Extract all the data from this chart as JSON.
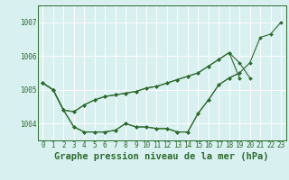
{
  "background_color": "#d8f0f0",
  "grid_color": "#ffffff",
  "line_color": "#2d6a2d",
  "title": "Graphe pression niveau de la mer (hPa)",
  "x_labels": [
    "0",
    "1",
    "2",
    "3",
    "4",
    "5",
    "6",
    "7",
    "8",
    "9",
    "10",
    "11",
    "12",
    "13",
    "14",
    "15",
    "16",
    "17",
    "18",
    "19",
    "20",
    "21",
    "22",
    "23"
  ],
  "ylim": [
    1003.5,
    1007.5
  ],
  "yticks": [
    1004,
    1005,
    1006,
    1007
  ],
  "series1_x": [
    0,
    1,
    2,
    3,
    4,
    5,
    6,
    7,
    8,
    9,
    10,
    11,
    12,
    13,
    14,
    15,
    16,
    17,
    18,
    19,
    20,
    21,
    22,
    23
  ],
  "series1_y": [
    1005.2,
    1005.0,
    1004.4,
    1003.9,
    1003.75,
    1003.75,
    1003.75,
    1003.8,
    1004.0,
    1003.9,
    1003.9,
    1003.85,
    1003.85,
    1003.75,
    1003.75,
    1004.3,
    1004.7,
    1005.15,
    1005.35,
    1005.5,
    1005.8,
    1006.55,
    1006.65,
    1007.0
  ],
  "series2_x": [
    0,
    1,
    2,
    3,
    4,
    5,
    6,
    7,
    8,
    9,
    10,
    11,
    12,
    13,
    14,
    15,
    16,
    17,
    18,
    19,
    20
  ],
  "series2_y": [
    1005.2,
    1005.0,
    1004.4,
    1004.35,
    1004.55,
    1004.7,
    1004.8,
    1004.85,
    1004.9,
    1004.95,
    1005.05,
    1005.1,
    1005.2,
    1005.3,
    1005.4,
    1005.5,
    1005.7,
    1005.9,
    1006.1,
    1005.8,
    1005.35
  ],
  "series3_x": [
    0,
    1,
    2,
    3,
    4,
    5,
    6,
    7,
    8,
    9,
    10,
    11,
    12,
    13,
    14,
    15,
    16,
    17,
    18,
    19
  ],
  "series3_y": [
    1005.2,
    1005.0,
    1004.4,
    1003.9,
    1003.75,
    1003.75,
    1003.75,
    1003.8,
    1004.0,
    1003.9,
    1003.9,
    1003.85,
    1003.85,
    1003.75,
    1003.75,
    1004.3,
    1004.7,
    1005.15,
    1005.35,
    1005.5
  ],
  "series4_x": [
    0,
    1,
    2,
    3,
    4,
    5,
    6,
    7,
    8,
    9,
    10,
    11,
    12,
    13,
    14,
    15,
    16,
    17,
    18,
    19
  ],
  "series4_y": [
    1005.2,
    1005.0,
    1004.4,
    1004.35,
    1004.55,
    1004.7,
    1004.8,
    1004.85,
    1004.9,
    1004.95,
    1005.05,
    1005.1,
    1005.2,
    1005.3,
    1005.4,
    1005.5,
    1005.7,
    1005.9,
    1006.1,
    1005.35
  ],
  "marker": "D",
  "markersize": 2.0,
  "linewidth": 0.8,
  "title_fontsize": 7.5,
  "tick_fontsize": 5.5,
  "spine_color": "#2d6a2d"
}
